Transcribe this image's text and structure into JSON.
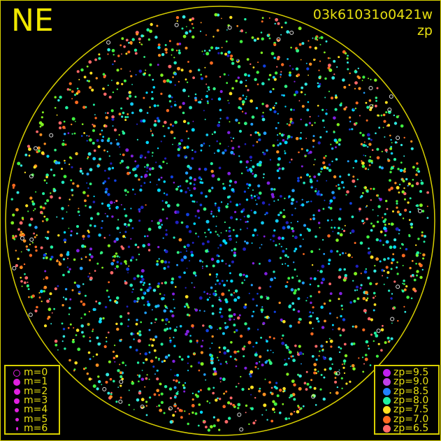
{
  "header": {
    "direction": "NE",
    "frame_id": "03k61031o0421w",
    "mode": "zp"
  },
  "colors": {
    "horizon": "#d8d000",
    "text": "#e8e010",
    "background": "#000000"
  },
  "magnitude_legend": [
    {
      "label": "m=0",
      "hollow": true
    },
    {
      "label": "m=1"
    },
    {
      "label": "m=2"
    },
    {
      "label": "m=3"
    },
    {
      "label": "m=4"
    },
    {
      "label": "m=5"
    },
    {
      "label": "m=6"
    }
  ],
  "magnitude_color": "#e020e0",
  "zp_legend": [
    {
      "label": "zp=9.5",
      "color": "#c020f0"
    },
    {
      "label": "zp=9.0",
      "color": "#c040e8"
    },
    {
      "label": "zp=8.5",
      "color": "#2080ff"
    },
    {
      "label": "zp=8.0",
      "color": "#20f0a0"
    },
    {
      "label": "zp=7.5",
      "color": "#ffe020"
    },
    {
      "label": "zp=7.0",
      "color": "#ff6a20"
    },
    {
      "label": "zp=6.5",
      "color": "#ff6868"
    }
  ]
}
